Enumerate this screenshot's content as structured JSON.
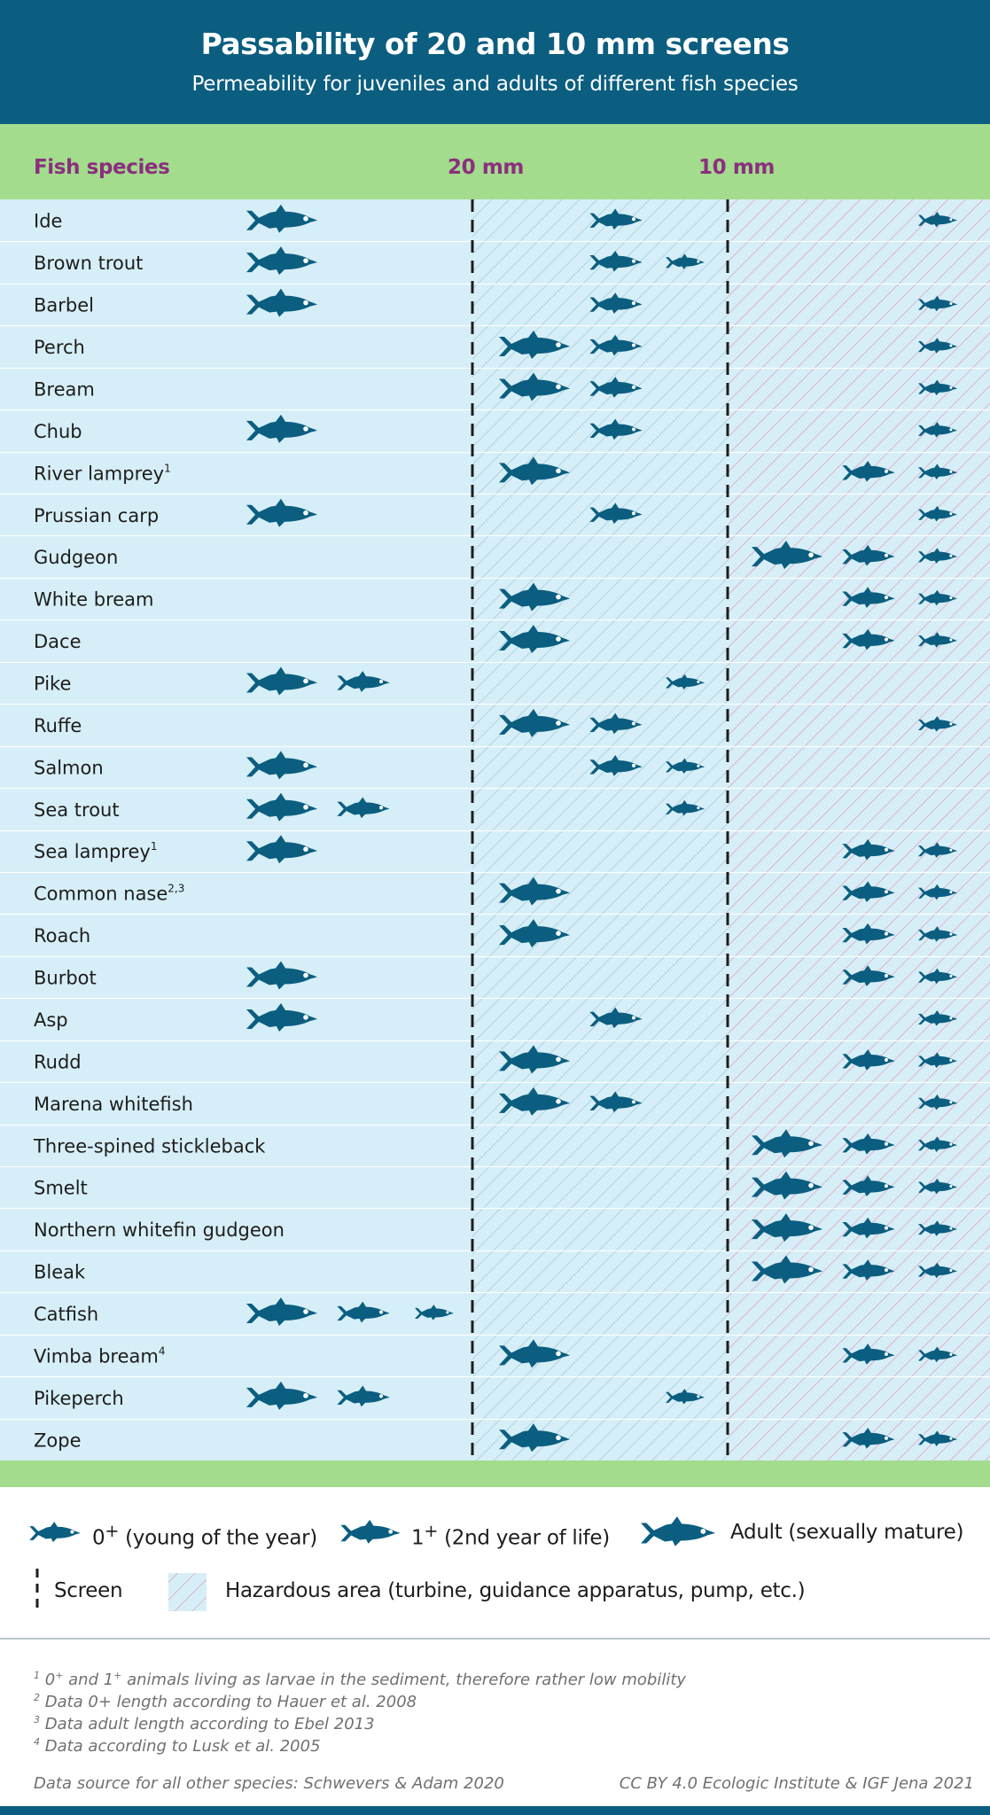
{
  "chart_data": {
    "type": "table",
    "title": "Passability of 20 and 10 mm screens",
    "subtitle": "Permeability for juveniles and adults of different fish species",
    "column_headers": {
      "species": "Fish species",
      "screen_20": "20 mm",
      "screen_10": "10 mm"
    },
    "zones": [
      "passes 20 mm screen",
      "held by 20 mm screen, passes 10 mm screen",
      "held by 10 mm screen"
    ],
    "stages": [
      "adult",
      "1+",
      "0+"
    ],
    "species": [
      {
        "name": "Ide",
        "sup": "",
        "adult": 0,
        "one": 1,
        "zero": 2
      },
      {
        "name": "Brown trout",
        "sup": "",
        "adult": 0,
        "one": 1,
        "zero": 1
      },
      {
        "name": "Barbel",
        "sup": "",
        "adult": 0,
        "one": 1,
        "zero": 2
      },
      {
        "name": "Perch",
        "sup": "",
        "adult": 1,
        "one": 1,
        "zero": 2
      },
      {
        "name": "Bream",
        "sup": "",
        "adult": 1,
        "one": 1,
        "zero": 2
      },
      {
        "name": "Chub",
        "sup": "",
        "adult": 0,
        "one": 1,
        "zero": 2
      },
      {
        "name": "River lamprey",
        "sup": "1",
        "adult": 1,
        "one": 2,
        "zero": 2
      },
      {
        "name": "Prussian carp",
        "sup": "",
        "adult": 0,
        "one": 1,
        "zero": 2
      },
      {
        "name": "Gudgeon",
        "sup": "",
        "adult": 2,
        "one": 2,
        "zero": 2
      },
      {
        "name": "White bream",
        "sup": "",
        "adult": 1,
        "one": 2,
        "zero": 2
      },
      {
        "name": "Dace",
        "sup": "",
        "adult": 1,
        "one": 2,
        "zero": 2
      },
      {
        "name": "Pike",
        "sup": "",
        "adult": 0,
        "one": 0,
        "zero": 1
      },
      {
        "name": "Ruffe",
        "sup": "",
        "adult": 1,
        "one": 1,
        "zero": 2
      },
      {
        "name": "Salmon",
        "sup": "",
        "adult": 0,
        "one": 1,
        "zero": 1
      },
      {
        "name": "Sea trout",
        "sup": "",
        "adult": 0,
        "one": 0,
        "zero": 1
      },
      {
        "name": "Sea lamprey",
        "sup": "1",
        "adult": 0,
        "one": 2,
        "zero": 2
      },
      {
        "name": "Common nase",
        "sup": "2,3",
        "adult": 1,
        "one": 2,
        "zero": 2
      },
      {
        "name": "Roach",
        "sup": "",
        "adult": 1,
        "one": 2,
        "zero": 2
      },
      {
        "name": "Burbot",
        "sup": "",
        "adult": 0,
        "one": 2,
        "zero": 2
      },
      {
        "name": "Asp",
        "sup": "",
        "adult": 0,
        "one": 1,
        "zero": 2
      },
      {
        "name": "Rudd",
        "sup": "",
        "adult": 1,
        "one": 2,
        "zero": 2
      },
      {
        "name": "Marena whitefish",
        "sup": "",
        "adult": 1,
        "one": 1,
        "zero": 2
      },
      {
        "name": "Three-spined stickleback",
        "sup": "",
        "adult": 2,
        "one": 2,
        "zero": 2
      },
      {
        "name": "Smelt",
        "sup": "",
        "adult": 2,
        "one": 2,
        "zero": 2
      },
      {
        "name": "Northern whitefin gudgeon",
        "sup": "",
        "adult": 2,
        "one": 2,
        "zero": 2
      },
      {
        "name": "Bleak",
        "sup": "",
        "adult": 2,
        "one": 2,
        "zero": 2
      },
      {
        "name": "Catfish",
        "sup": "",
        "adult": 0,
        "one": 0,
        "zero": 0
      },
      {
        "name": "Vimba bream",
        "sup": "4",
        "adult": 1,
        "one": 2,
        "zero": 2
      },
      {
        "name": "Pikeperch",
        "sup": "",
        "adult": 0,
        "one": 0,
        "zero": 1
      },
      {
        "name": "Zope",
        "sup": "",
        "adult": 1,
        "one": 2,
        "zero": 2
      }
    ]
  },
  "legend": {
    "zero_base": "0",
    "zero_sup": "+",
    "zero_label": " (young of the year)",
    "one_base": "1",
    "one_sup": "+",
    "one_label": " (2nd year of life)",
    "adult_label": "Adult (sexually mature)",
    "screen_label": "Screen",
    "hazard_label": "Hazardous area (turbine, guidance apparatus, pump, etc.)"
  },
  "notes": [
    {
      "num": "1",
      "text_a": " 0",
      "sup_a": "+",
      "text_b": " and 1",
      "sup_b": "+",
      "text_c": " animals living as larvae in the sediment, therefore rather low mobility"
    },
    {
      "num": "2",
      "text": " Data 0+ length according to Hauer et al. 2008"
    },
    {
      "num": "3",
      "text": " Data adult length according to Ebel 2013"
    },
    {
      "num": "4",
      "text": " Data according to Lusk et al. 2005"
    }
  ],
  "footer": {
    "source": "Data source for all other species: Schwevers & Adam 2020",
    "credit": "CC BY 4.0  Ecologic Institute & IGF Jena 2021"
  },
  "colors": {
    "header_blue": "#0b5e80",
    "green": "#a2dc8c",
    "purple": "#8b2f7e",
    "row_bg": "#d6eef7",
    "fish": "#0b5e80",
    "hatch_blue": "#9fc7da",
    "hatch_pink": "#e39bb8"
  }
}
